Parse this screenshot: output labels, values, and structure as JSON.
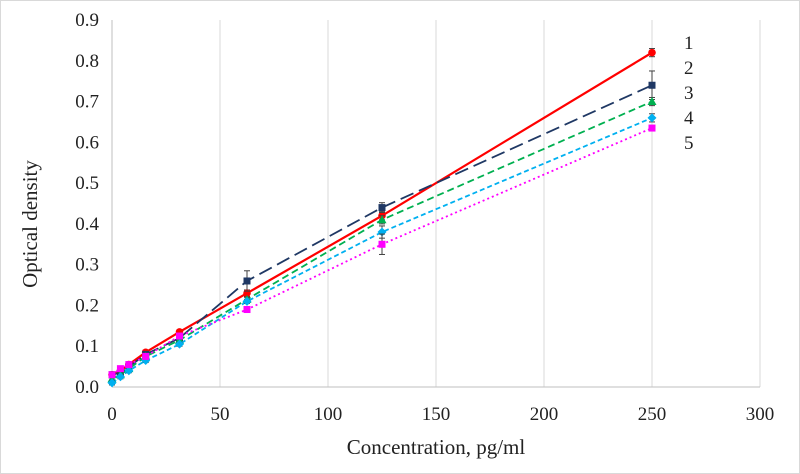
{
  "chart_data": {
    "type": "line",
    "title": "",
    "xlabel": "Concentration, pg/ml",
    "ylabel": "Optical density",
    "xlim": [
      0,
      300
    ],
    "ylim": [
      0,
      0.9
    ],
    "x_ticks": [
      0,
      50,
      100,
      150,
      200,
      250,
      300
    ],
    "y_ticks": [
      0,
      0.1,
      0.2,
      0.3,
      0.4,
      0.5,
      0.6,
      0.7,
      0.8,
      0.9
    ],
    "x_tick_labels": [
      "0",
      "50",
      "100",
      "150",
      "200",
      "250",
      "300"
    ],
    "y_tick_labels": [
      "0.0",
      "0.1",
      "0.2",
      "0.3",
      "0.4",
      "0.5",
      "0.6",
      "0.7",
      "0.8",
      "0.9"
    ],
    "grid": "vertical",
    "x": [
      0,
      3.9,
      7.8,
      15.6,
      31.25,
      62.5,
      125,
      250
    ],
    "series": [
      {
        "name": "1",
        "color": "#ff0000",
        "line_style": "solid",
        "marker": "circle",
        "values": [
          0.03,
          0.04,
          0.055,
          0.085,
          0.135,
          0.23,
          0.42,
          0.82
        ],
        "error": [
          0.005,
          0.005,
          0.005,
          0.005,
          0.005,
          0.008,
          0.01,
          0.01
        ]
      },
      {
        "name": "2",
        "color": "#1f3864",
        "line_style": "long-dash",
        "marker": "square",
        "values": [
          0.03,
          0.035,
          0.05,
          0.08,
          0.12,
          0.26,
          0.44,
          0.74
        ],
        "error": [
          0.005,
          0.005,
          0.005,
          0.005,
          0.005,
          0.025,
          0.012,
          0.035
        ]
      },
      {
        "name": "3",
        "color": "#00b050",
        "line_style": "dash",
        "marker": "triangle",
        "values": [
          0.02,
          0.03,
          0.045,
          0.075,
          0.115,
          0.215,
          0.41,
          0.7
        ],
        "error": [
          0.005,
          0.005,
          0.005,
          0.005,
          0.005,
          0.005,
          0.01,
          0.01
        ]
      },
      {
        "name": "4",
        "color": "#00b0f0",
        "line_style": "short-dash",
        "marker": "diamond",
        "values": [
          0.01,
          0.025,
          0.04,
          0.065,
          0.105,
          0.21,
          0.38,
          0.66
        ],
        "error": [
          0.005,
          0.005,
          0.005,
          0.005,
          0.005,
          0.005,
          0.015,
          0.01
        ]
      },
      {
        "name": "5",
        "color": "#ff00ff",
        "line_style": "dotted",
        "marker": "square",
        "values": [
          0.03,
          0.045,
          0.055,
          0.075,
          0.125,
          0.19,
          0.35,
          0.635
        ],
        "error": [
          0.005,
          0.005,
          0.005,
          0.005,
          0.005,
          0.005,
          0.025,
          0.005
        ]
      }
    ]
  }
}
